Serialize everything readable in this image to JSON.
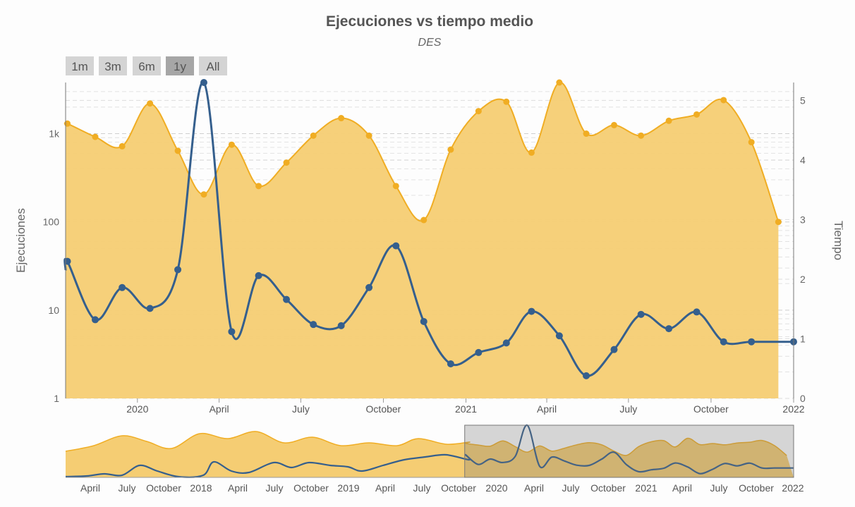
{
  "chart_data": {
    "type": "line+area",
    "title": "Ejecuciones vs tiempo medio",
    "subtitle": "DES",
    "range_buttons": [
      {
        "label": "1m",
        "selected": false
      },
      {
        "label": "3m",
        "selected": false
      },
      {
        "label": "6m",
        "selected": false
      },
      {
        "label": "1y",
        "selected": true
      },
      {
        "label": "All",
        "selected": false
      }
    ],
    "y_left": {
      "label": "Ejecuciones",
      "scale": "log",
      "ticks": [
        1,
        10,
        100,
        1000
      ],
      "tick_labels": [
        "1",
        "10",
        "100",
        "1k"
      ],
      "range": [
        1,
        3800
      ]
    },
    "y_right": {
      "label": "Tiempo",
      "scale": "linear",
      "ticks": [
        0,
        1,
        2,
        3,
        4,
        5
      ],
      "tick_labels": [
        "0",
        "1",
        "2",
        "3",
        "4",
        "5"
      ],
      "range": [
        0,
        5.3
      ]
    },
    "x_ticks": [
      {
        "label": "2020",
        "date": "2020-01-01"
      },
      {
        "label": "April",
        "date": "2020-04-01"
      },
      {
        "label": "July",
        "date": "2020-07-01"
      },
      {
        "label": "October",
        "date": "2020-10-01"
      },
      {
        "label": "2021",
        "date": "2021-01-01"
      },
      {
        "label": "April",
        "date": "2021-04-01"
      },
      {
        "label": "July",
        "date": "2021-07-01"
      },
      {
        "label": "October",
        "date": "2021-10-01"
      },
      {
        "label": "2022",
        "date": "2022-01-01"
      }
    ],
    "x_range": [
      "2019-10-13",
      "2022-01-01"
    ],
    "series": [
      {
        "name": "Ejecuciones",
        "axis": "left",
        "style": "area",
        "color": "#f0ad23",
        "fill": "#f5cd73",
        "points": [
          [
            "2019-10-15",
            1300
          ],
          [
            "2019-11-15",
            920
          ],
          [
            "2019-12-15",
            720
          ],
          [
            "2020-01-15",
            2200
          ],
          [
            "2020-02-15",
            640
          ],
          [
            "2020-03-15",
            205
          ],
          [
            "2020-04-15",
            750
          ],
          [
            "2020-05-15",
            255
          ],
          [
            "2020-06-15",
            470
          ],
          [
            "2020-07-15",
            950
          ],
          [
            "2020-08-15",
            1500
          ],
          [
            "2020-09-15",
            950
          ],
          [
            "2020-10-15",
            255
          ],
          [
            "2020-11-15",
            105
          ],
          [
            "2020-12-15",
            660
          ],
          [
            "2021-01-15",
            1800
          ],
          [
            "2021-02-15",
            2300
          ],
          [
            "2021-03-15",
            610
          ],
          [
            "2021-04-15",
            3800
          ],
          [
            "2021-05-15",
            1000
          ],
          [
            "2021-06-15",
            1250
          ],
          [
            "2021-07-15",
            950
          ],
          [
            "2021-08-15",
            1400
          ],
          [
            "2021-09-15",
            1650
          ],
          [
            "2021-10-15",
            2400
          ],
          [
            "2021-11-15",
            800
          ],
          [
            "2021-12-15",
            100
          ]
        ]
      },
      {
        "name": "Tiempo medio",
        "axis": "right",
        "style": "line",
        "color": "#355f8d",
        "points": [
          [
            "2019-10-13",
            2.15
          ],
          [
            "2019-10-15",
            2.3
          ],
          [
            "2019-11-15",
            1.32
          ],
          [
            "2019-12-15",
            1.86
          ],
          [
            "2020-01-15",
            1.51
          ],
          [
            "2020-02-15",
            2.16
          ],
          [
            "2020-03-15",
            5.3
          ],
          [
            "2020-04-15",
            1.12
          ],
          [
            "2020-05-15",
            2.06
          ],
          [
            "2020-06-15",
            1.66
          ],
          [
            "2020-07-15",
            1.24
          ],
          [
            "2020-08-15",
            1.22
          ],
          [
            "2020-09-15",
            1.86
          ],
          [
            "2020-10-15",
            2.56
          ],
          [
            "2020-11-15",
            1.29
          ],
          [
            "2020-12-15",
            0.58
          ],
          [
            "2021-01-15",
            0.77
          ],
          [
            "2021-02-15",
            0.93
          ],
          [
            "2021-03-15",
            1.46
          ],
          [
            "2021-04-15",
            1.05
          ],
          [
            "2021-05-15",
            0.38
          ],
          [
            "2021-06-15",
            0.82
          ],
          [
            "2021-07-15",
            1.41
          ],
          [
            "2021-08-15",
            1.17
          ],
          [
            "2021-09-15",
            1.45
          ],
          [
            "2021-10-15",
            0.95
          ],
          [
            "2021-11-15",
            0.95
          ]
        ]
      }
    ],
    "navigator": {
      "x_ticks": [
        "April",
        "July",
        "October",
        "2018",
        "April",
        "July",
        "October",
        "2019",
        "April",
        "July",
        "October",
        "2020",
        "April",
        "July",
        "October",
        "2021",
        "April",
        "July",
        "October",
        "2022"
      ],
      "selection": [
        "2019-10-13",
        "2022-01-01"
      ]
    }
  }
}
